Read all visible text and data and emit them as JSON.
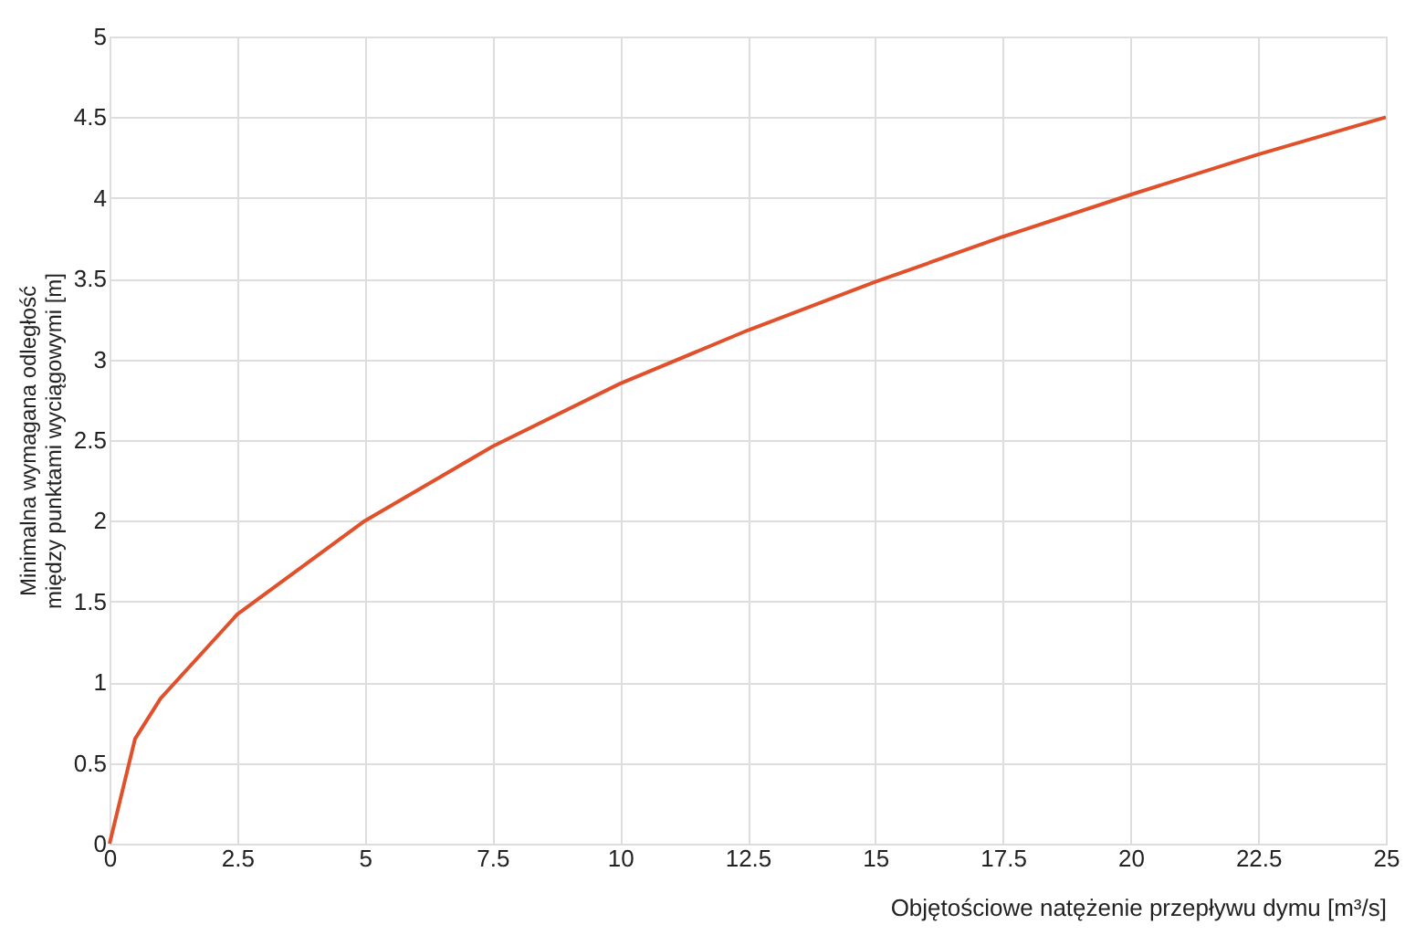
{
  "chart_data": {
    "type": "line",
    "xlabel": "Objętościowe natężenie przepływu dymu [m³/s]",
    "ylabel": "Minimalna wymagana odległość między punktami wyciągowymi [m]",
    "x": [
      0,
      0.5,
      1,
      2.5,
      5,
      7.5,
      10,
      12.5,
      15,
      17.5,
      20,
      22.5,
      25
    ],
    "series": [
      {
        "color": "#e0502a",
        "values": [
          0,
          0.65,
          0.9,
          1.42,
          2.0,
          2.46,
          2.85,
          3.18,
          3.48,
          3.76,
          4.02,
          4.27,
          4.5
        ]
      }
    ],
    "xlim": [
      0,
      25
    ],
    "xticks": [
      0,
      2.5,
      5,
      7.5,
      10,
      12.5,
      15,
      17.5,
      20,
      22.5,
      25
    ],
    "ylim": [
      0,
      5
    ],
    "yticks": [
      0,
      0.5,
      1,
      1.5,
      2,
      2.5,
      3,
      3.5,
      4,
      4.5,
      5
    ],
    "grid": true,
    "marker": "none",
    "line_style": "solid"
  }
}
